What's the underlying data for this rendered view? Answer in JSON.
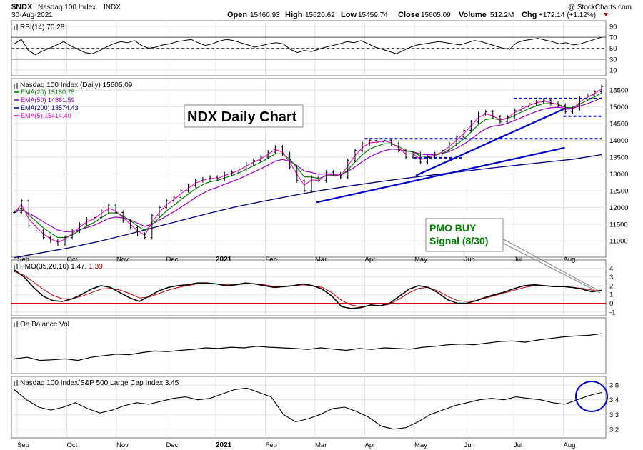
{
  "header": {
    "symbol": "$NDX",
    "name": "Nasdaq 100 Index",
    "exchange": "INDX",
    "date": "30-Aug-2021",
    "open_label": "Open",
    "open": "15460.93",
    "high_label": "High",
    "high": "15620.62",
    "low_label": "Low",
    "low": "15459.74",
    "close_label": "Close",
    "close": "15605.09",
    "volume_label": "Volume",
    "volume": "512.2M",
    "chg_label": "Chg",
    "chg": "+172.14 (+1.12%)",
    "watermark": "@ StockCharts.com"
  },
  "colors": {
    "price": "#000000",
    "ema20": "#008000",
    "ema50": "#9900cc",
    "ema200": "#000080",
    "ema5": "#ff00cc",
    "trend": "#0000cc",
    "pmo": "#000000",
    "pmo_signal": "#cc0000",
    "rsi": "#000000",
    "callout_text": "#008000",
    "zero_line": "#cc0000"
  },
  "callouts": {
    "title": "NDX Daily Chart",
    "pmo_line1": "PMO BUY",
    "pmo_line2": "Signal (8/30)"
  },
  "chart_data": [
    {
      "type": "line",
      "panel": "rsi",
      "legend": "RSI(14) 70.28",
      "series": [
        {
          "name": "RSI(14)",
          "last": 70.28,
          "values": [
            58,
            66,
            46,
            38,
            45,
            50,
            56,
            62,
            54,
            48,
            42,
            40,
            45,
            52,
            58,
            62,
            60,
            64,
            55,
            50,
            52,
            56,
            58,
            62,
            64,
            66,
            60,
            55,
            58,
            63,
            66,
            64,
            60,
            56,
            52,
            55,
            58,
            60,
            58,
            48,
            42,
            46,
            44,
            48,
            52,
            55,
            58,
            62,
            60,
            64,
            58,
            52,
            48,
            44,
            40,
            46,
            52,
            56,
            58,
            60,
            62,
            60,
            58,
            56,
            60,
            64,
            62,
            58,
            54,
            50,
            48,
            60,
            64,
            66,
            68,
            65,
            62,
            58,
            60,
            56,
            58,
            62,
            66,
            70
          ]
        }
      ],
      "ylim": [
        5,
        95
      ],
      "y_ticks": [
        10,
        30,
        50,
        70,
        90
      ],
      "ref_lines": [
        30,
        50,
        70
      ]
    },
    {
      "type": "candlestick",
      "panel": "price",
      "legend": {
        "price": "Nasdaq 100 Index (Daily) 15605.09",
        "ema20": "EMA(20) 15180.75",
        "ema50": "EMA(50) 14861.59",
        "ema200": "EMA(200) 13574.43",
        "ema5": "EMA(5) 15414.40"
      },
      "x_labels": [
        "Sep",
        "Oct",
        "Nov",
        "Dec",
        "2021",
        "Feb",
        "Mar",
        "Apr",
        "May",
        "Jun",
        "Jul",
        "Aug"
      ],
      "y_ticks": [
        11000,
        11500,
        12000,
        12500,
        13000,
        13500,
        14000,
        14500,
        15000,
        15500
      ],
      "ylim": [
        10600,
        15760
      ],
      "close": [
        11850,
        12200,
        11450,
        11300,
        11100,
        11000,
        10900,
        11100,
        11300,
        11500,
        11650,
        11700,
        11900,
        12050,
        11850,
        11600,
        11400,
        11200,
        11100,
        11750,
        12000,
        12200,
        12300,
        12500,
        12650,
        12800,
        12850,
        12900,
        12850,
        13000,
        13050,
        13150,
        13300,
        13400,
        13500,
        13650,
        13800,
        13600,
        13200,
        12800,
        12500,
        12900,
        12800,
        13050,
        13000,
        12900,
        13400,
        13700,
        13900,
        14000,
        13950,
        14000,
        13900,
        13700,
        13500,
        13600,
        13350,
        13500,
        13600,
        13700,
        13900,
        14100,
        14300,
        14550,
        14800,
        14850,
        14700,
        14550,
        14700,
        14900,
        15000,
        15100,
        15150,
        15200,
        15100,
        15050,
        14850,
        14950,
        15250,
        15350,
        15450,
        15605
      ],
      "ema20_last": 15180.75,
      "ema50_last": 14861.59,
      "ema200_last": 13574.43,
      "ema5_last": 15414.4,
      "ema200": [
        10500,
        10650,
        10800,
        10980,
        11180,
        11400,
        11620,
        11830,
        12030,
        12200,
        12360,
        12510,
        12640,
        12760,
        12870,
        12970,
        13070,
        13170,
        13260,
        13350,
        13440,
        13574.43
      ],
      "horizontal_levels": [
        {
          "y": 14050,
          "from": "Apr",
          "to": "end"
        },
        {
          "y": 13480,
          "from": "May",
          "to": "Jun"
        },
        {
          "y": 15250,
          "from": "Jul",
          "to": "end"
        },
        {
          "y": 14720,
          "from": "Aug",
          "to": "end"
        }
      ],
      "trendlines": [
        {
          "from": [
            "Mar",
            12150
          ],
          "to": [
            "Aug",
            13780
          ]
        },
        {
          "from": [
            "May",
            12950
          ],
          "to": [
            "Aug",
            14950
          ]
        }
      ]
    },
    {
      "type": "line",
      "panel": "pmo",
      "legend_label": "PMO(35,20,10)",
      "legend_pmo": "1.47",
      "legend_signal": "1.39",
      "series": [
        {
          "name": "PMO",
          "last": 1.47,
          "values": [
            3.8,
            3.0,
            1.8,
            0.8,
            0.3,
            0.2,
            0.5,
            1.0,
            1.6,
            2.0,
            1.8,
            1.2,
            0.6,
            0.2,
            0.8,
            1.4,
            1.8,
            2.0,
            2.1,
            2.3,
            2.3,
            2.2,
            2.0,
            2.1,
            2.3,
            2.2,
            2.0,
            1.8,
            1.9,
            2.0,
            2.2,
            2.0,
            1.6,
            0.8,
            -0.4,
            -0.6,
            -0.5,
            -0.2,
            -0.3,
            0.0,
            0.8,
            1.6,
            2.0,
            1.8,
            1.2,
            0.4,
            0.0,
            0.0,
            0.3,
            0.7,
            1.0,
            1.3,
            1.7,
            2.0,
            2.1,
            2.0,
            1.9,
            1.9,
            1.8,
            1.6,
            1.3,
            1.47
          ]
        },
        {
          "name": "Signal",
          "last": 1.39,
          "values": [
            3.6,
            3.2,
            2.4,
            1.6,
            0.9,
            0.5,
            0.5,
            0.8,
            1.2,
            1.6,
            1.7,
            1.5,
            1.1,
            0.6,
            0.7,
            1.1,
            1.5,
            1.8,
            2.0,
            2.2,
            2.2,
            2.2,
            2.1,
            2.1,
            2.2,
            2.2,
            2.1,
            1.9,
            1.9,
            2.0,
            2.1,
            2.0,
            1.8,
            1.2,
            0.3,
            -0.2,
            -0.4,
            -0.3,
            -0.3,
            -0.1,
            0.5,
            1.2,
            1.7,
            1.8,
            1.4,
            0.8,
            0.3,
            0.2,
            0.3,
            0.6,
            0.9,
            1.2,
            1.5,
            1.8,
            2.0,
            2.0,
            1.9,
            1.9,
            1.8,
            1.7,
            1.5,
            1.39
          ]
        }
      ],
      "ylim": [
        -1.1,
        4.6
      ],
      "y_ticks": [
        -1,
        0,
        1,
        2,
        3,
        4
      ],
      "zero_line": 0
    },
    {
      "type": "line",
      "panel": "obv",
      "legend": "On Balance Vol",
      "series": [
        {
          "name": "On Balance Vol",
          "values": [
            0.15,
            0.2,
            0.1,
            0.12,
            0.15,
            0.1,
            0.2,
            0.25,
            0.3,
            0.28,
            0.35,
            0.4,
            0.38,
            0.42,
            0.45,
            0.5,
            0.48,
            0.52,
            0.5,
            0.55,
            0.52,
            0.5,
            0.48,
            0.45,
            0.5,
            0.46,
            0.42,
            0.48,
            0.45,
            0.5,
            0.48,
            0.46,
            0.52,
            0.55,
            0.6,
            0.62,
            0.6,
            0.65,
            0.7,
            0.72,
            0.68,
            0.75,
            0.8,
            0.85,
            0.88,
            0.9,
            0.95
          ]
        }
      ]
    },
    {
      "type": "line",
      "panel": "ratio",
      "legend": "Nasdaq 100 Index/S&P 500 Large Cap Index 3.45",
      "series": [
        {
          "name": "Nasdaq 100 Index/S&P 500 Large Cap Index",
          "last": 3.45,
          "values": [
            3.47,
            3.4,
            3.35,
            3.33,
            3.35,
            3.38,
            3.34,
            3.31,
            3.33,
            3.36,
            3.38,
            3.37,
            3.39,
            3.41,
            3.42,
            3.4,
            3.41,
            3.44,
            3.47,
            3.48,
            3.45,
            3.42,
            3.3,
            3.25,
            3.27,
            3.3,
            3.34,
            3.35,
            3.32,
            3.28,
            3.22,
            3.2,
            3.21,
            3.25,
            3.3,
            3.33,
            3.36,
            3.38,
            3.4,
            3.41,
            3.4,
            3.42,
            3.41,
            3.4,
            3.38,
            3.37,
            3.4,
            3.43,
            3.45
          ]
        }
      ],
      "ylim": [
        3.16,
        3.54
      ],
      "y_ticks": [
        3.2,
        3.3,
        3.4,
        3.5
      ]
    }
  ]
}
